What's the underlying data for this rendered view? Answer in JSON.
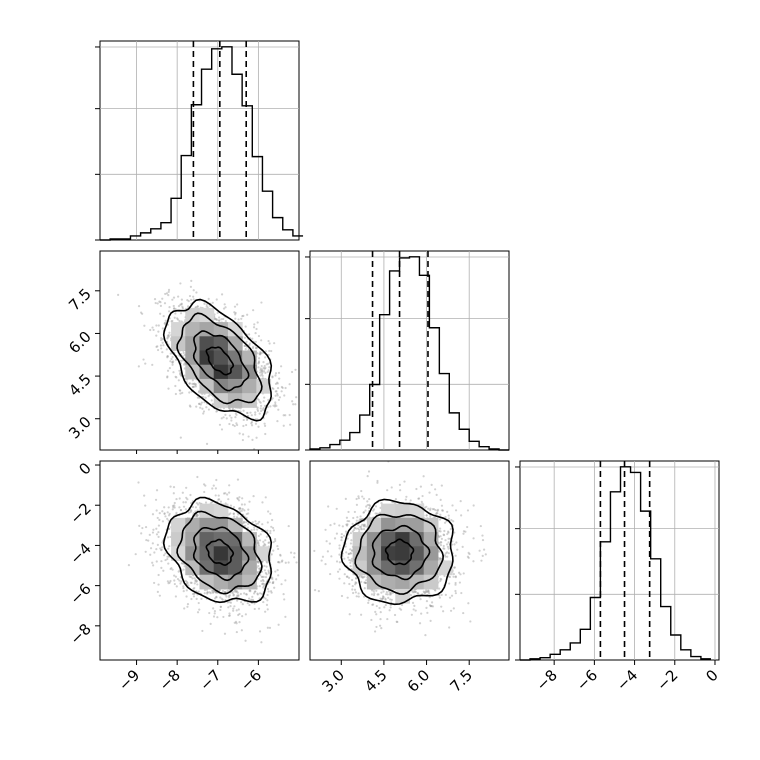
{
  "chart_data": {
    "type": "corner",
    "title": "",
    "colors": {
      "hist": "#000000",
      "grid": "#b0b0b0",
      "scatter": "#9a9a9a",
      "contour": "#000000"
    },
    "grid": true,
    "axes": [
      {
        "ticks": [
          "−9",
          "−8",
          "−7",
          "−6"
        ],
        "tick_values": [
          -9,
          -8,
          -7,
          -6
        ],
        "range": [
          -9.9,
          -5.0
        ],
        "quantiles": [
          -7.6,
          -6.95,
          -6.3
        ]
      },
      {
        "ticks": [
          "3.0",
          "4.5",
          "6.0",
          "7.5"
        ],
        "tick_values": [
          3.0,
          4.5,
          6.0,
          7.5
        ],
        "range": [
          1.9,
          8.9
        ],
        "quantiles": [
          4.1,
          5.05,
          6.05
        ]
      },
      {
        "ticks": [
          "−8",
          "−6",
          "−4",
          "−2",
          "0"
        ],
        "tick_values": [
          -8,
          -6,
          -4,
          -2,
          0
        ],
        "range": [
          -9.7,
          0.2
        ],
        "quantiles": [
          -5.7,
          -4.5,
          -3.25
        ]
      }
    ],
    "histograms": [
      {
        "param": 0,
        "bins": [
          -9.9,
          -9.65,
          -9.4,
          -9.15,
          -8.9,
          -8.65,
          -8.4,
          -8.15,
          -7.9,
          -7.65,
          -7.4,
          -7.15,
          -6.9,
          -6.65,
          -6.4,
          -6.15,
          -5.9,
          -5.65,
          -5.4,
          -5.15,
          -4.9
        ],
        "counts": [
          0,
          1,
          1,
          4,
          7,
          11,
          17,
          41,
          83,
          133,
          168,
          188,
          190,
          163,
          132,
          82,
          48,
          22,
          10,
          4
        ]
      },
      {
        "param": 1,
        "bins": [
          1.9,
          2.25,
          2.6,
          2.95,
          3.3,
          3.65,
          4.0,
          4.35,
          4.7,
          5.05,
          5.4,
          5.75,
          6.1,
          6.45,
          6.8,
          7.15,
          7.5,
          7.85,
          8.2,
          8.55,
          8.9
        ],
        "counts": [
          1,
          2,
          5,
          9,
          16,
          32,
          60,
          124,
          164,
          176,
          177,
          160,
          112,
          70,
          34,
          19,
          8,
          3,
          1,
          0
        ]
      },
      {
        "param": 2,
        "bins": [
          -9.7,
          -9.2,
          -8.7,
          -8.2,
          -7.7,
          -7.2,
          -6.7,
          -6.2,
          -5.7,
          -5.2,
          -4.7,
          -4.2,
          -3.7,
          -3.2,
          -2.7,
          -2.2,
          -1.7,
          -1.2,
          -0.7,
          -0.2
        ],
        "counts": [
          0,
          1,
          2,
          5,
          9,
          15,
          27,
          55,
          104,
          148,
          170,
          165,
          131,
          89,
          47,
          22,
          9,
          3,
          1
        ]
      }
    ],
    "pairs": [
      {
        "x": 0,
        "y": 1,
        "center": [
          -6.95,
          5.05
        ],
        "spread": [
          0.62,
          0.95
        ],
        "rho": -0.5
      },
      {
        "x": 0,
        "y": 2,
        "center": [
          -6.95,
          -4.35
        ],
        "spread": [
          0.62,
          1.2
        ],
        "rho": -0.25
      },
      {
        "x": 1,
        "y": 2,
        "center": [
          5.05,
          -4.35
        ],
        "spread": [
          0.92,
          1.2
        ],
        "rho": 0.0
      }
    ]
  }
}
